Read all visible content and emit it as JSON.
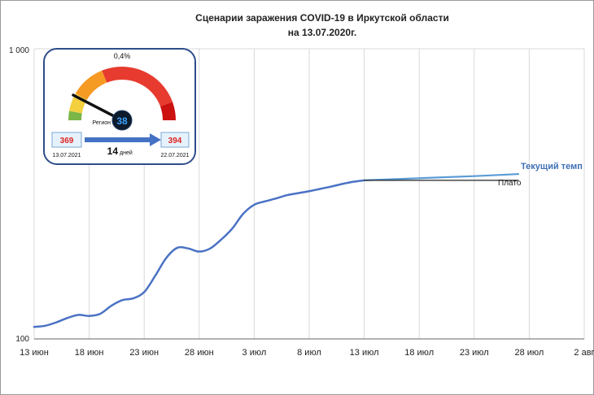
{
  "chart_data": {
    "type": "line",
    "title": "Сценарии заражения COVID-19 в Иркутской области",
    "subtitle": "на 13.07.2020г.",
    "y_scale": "log",
    "ylim": [
      100,
      1000
    ],
    "y_ticks": [
      "100",
      "1 000"
    ],
    "x_range": [
      "2020-06-13",
      "2020-08-02"
    ],
    "x_ticks": [
      "13 июн",
      "18 июн",
      "23 июн",
      "28 июн",
      "3 июл",
      "8 июл",
      "13 июл",
      "18 июл",
      "23 июл",
      "28 июл",
      "2 авг"
    ],
    "grid": "vertical",
    "series": [
      {
        "name": "",
        "color": "#4a72c4",
        "points": [
          [
            "2020-06-13",
            110
          ],
          [
            "2020-06-14",
            111
          ],
          [
            "2020-06-15",
            114
          ],
          [
            "2020-06-16",
            118
          ],
          [
            "2020-06-17",
            121
          ],
          [
            "2020-06-18",
            120
          ],
          [
            "2020-06-19",
            122
          ],
          [
            "2020-06-20",
            130
          ],
          [
            "2020-06-21",
            136
          ],
          [
            "2020-06-22",
            138
          ],
          [
            "2020-06-23",
            145
          ],
          [
            "2020-06-24",
            165
          ],
          [
            "2020-06-25",
            190
          ],
          [
            "2020-06-26",
            206
          ],
          [
            "2020-06-27",
            205
          ],
          [
            "2020-06-28",
            200
          ],
          [
            "2020-06-29",
            205
          ],
          [
            "2020-06-30",
            220
          ],
          [
            "2020-07-01",
            240
          ],
          [
            "2020-07-02",
            270
          ],
          [
            "2020-07-03",
            290
          ],
          [
            "2020-07-04",
            298
          ],
          [
            "2020-07-05",
            305
          ],
          [
            "2020-07-06",
            313
          ],
          [
            "2020-07-07",
            318
          ],
          [
            "2020-07-08",
            323
          ],
          [
            "2020-07-09",
            329
          ],
          [
            "2020-07-10",
            335
          ],
          [
            "2020-07-11",
            342
          ],
          [
            "2020-07-12",
            348
          ],
          [
            "2020-07-13",
            352
          ]
        ]
      },
      {
        "name": "Текущий темп",
        "color": "#5a9bd5",
        "points": [
          [
            "2020-07-13",
            352
          ],
          [
            "2020-07-18",
            358
          ],
          [
            "2020-07-23",
            364
          ],
          [
            "2020-07-27",
            370
          ]
        ]
      },
      {
        "name": "Плато",
        "color": "#222222",
        "points": [
          [
            "2020-07-13",
            352
          ],
          [
            "2020-07-27",
            352
          ]
        ]
      }
    ]
  },
  "gauge": {
    "percent_label": "0,4%",
    "region_label": "Регион",
    "region_code": "38",
    "start_value": "369",
    "start_date": "13.07.2021",
    "end_value": "394",
    "end_date": "22.07.2021",
    "days_number": "14",
    "days_unit": "дней",
    "colors": [
      "#7ab648",
      "#f4d03f",
      "#f59a23",
      "#e63b2e",
      "#cc1111"
    ]
  }
}
